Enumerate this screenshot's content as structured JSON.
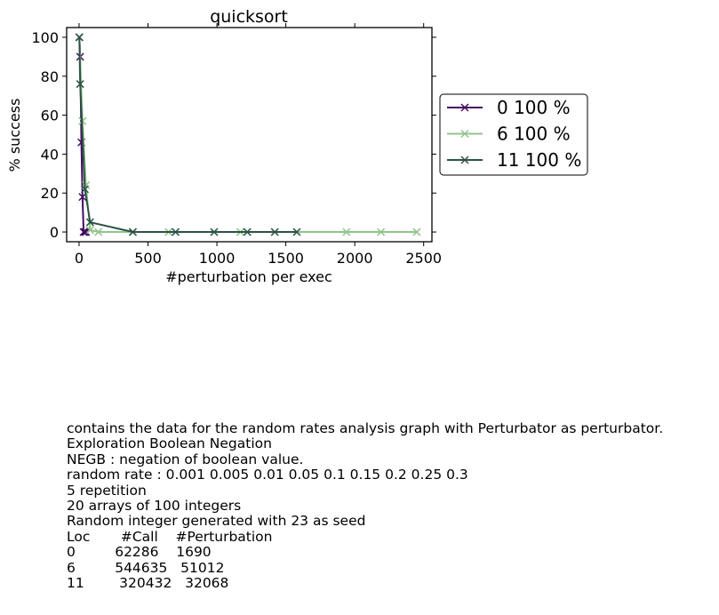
{
  "chart_data": {
    "type": "line",
    "title": "quicksort",
    "xlabel": "#perturbation per exec",
    "ylabel": "% success",
    "xlim": [
      -90,
      2560
    ],
    "ylim": [
      -5,
      105
    ],
    "xticks": [
      0,
      500,
      1000,
      1500,
      2000,
      2500
    ],
    "yticks": [
      0,
      20,
      40,
      60,
      80,
      100
    ],
    "grid": false,
    "legend_position": "outside-right",
    "series": [
      {
        "name": "0 100 %",
        "color": "#440b60",
        "marker": "x",
        "x": [
          2,
          8,
          17,
          25,
          33,
          42,
          50
        ],
        "y": [
          100,
          90,
          46,
          18,
          0,
          0,
          0
        ]
      },
      {
        "name": "6 100 %",
        "color": "#90c48c",
        "marker": "x",
        "x": [
          2,
          25,
          50,
          80,
          140,
          390,
          650,
          1170,
          1940,
          2190,
          2450
        ],
        "y": [
          100,
          57,
          24,
          1,
          0,
          0,
          0,
          0,
          0,
          0,
          0
        ]
      },
      {
        "name": "11 100 %",
        "color": "#2d5247",
        "marker": "x",
        "x": [
          2,
          8,
          42,
          80,
          390,
          700,
          980,
          1220,
          1420,
          1580
        ],
        "y": [
          100,
          76,
          22,
          5,
          0,
          0,
          0,
          0,
          0,
          0
        ]
      }
    ]
  },
  "notes": [
    "contains the data for the random rates analysis graph with Perturbator as perturbator.",
    "Exploration Boolean Negation",
    "NEGB : negation of boolean value.",
    "random rate : 0.001 0.005 0.01 0.05 0.1 0.15 0.2 0.25 0.3",
    "5 repetition",
    "20 arrays of 100 integers",
    "Random integer generated with 23 as seed",
    "Loc       #Call    #Perturbation",
    "0         62286    1690",
    "6         544635   51012",
    "11        320432   32068"
  ]
}
